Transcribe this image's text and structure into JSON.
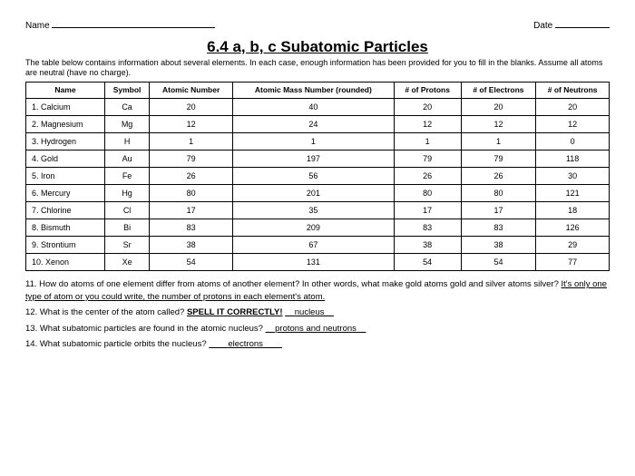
{
  "header": {
    "nameLabel": "Name",
    "dateLabel": "Date"
  },
  "title": "6.4 a, b, c Subatomic Particles",
  "intro": "The table below contains information about several elements. In each case, enough information has been provided for you to fill in the blanks. Assume all atoms are neutral (have no charge).",
  "columns": [
    "Name",
    "Symbol",
    "Atomic Number",
    "Atomic Mass Number (rounded)",
    "# of Protons",
    "# of Electrons",
    "# of Neutrons"
  ],
  "rows": [
    {
      "n": "1.",
      "name": "Calcium",
      "sym": "Ca",
      "an": "20",
      "amn": "40",
      "p": "20",
      "e": "20",
      "nu": "20"
    },
    {
      "n": "2.",
      "name": "Magnesium",
      "sym": "Mg",
      "an": "12",
      "amn": "24",
      "p": "12",
      "e": "12",
      "nu": "12"
    },
    {
      "n": "3.",
      "name": "Hydrogen",
      "sym": "H",
      "an": "1",
      "amn": "1",
      "p": "1",
      "e": "1",
      "nu": "0"
    },
    {
      "n": "4.",
      "name": "Gold",
      "sym": "Au",
      "an": "79",
      "amn": "197",
      "p": "79",
      "e": "79",
      "nu": "118"
    },
    {
      "n": "5.",
      "name": "Iron",
      "sym": "Fe",
      "an": "26",
      "amn": "56",
      "p": "26",
      "e": "26",
      "nu": "30"
    },
    {
      "n": "6.",
      "name": "Mercury",
      "sym": "Hg",
      "an": "80",
      "amn": "201",
      "p": "80",
      "e": "80",
      "nu": "121"
    },
    {
      "n": "7.",
      "name": "Chlorine",
      "sym": "Cl",
      "an": "17",
      "amn": "35",
      "p": "17",
      "e": "17",
      "nu": "18"
    },
    {
      "n": "8.",
      "name": "Bismuth",
      "sym": "Bi",
      "an": "83",
      "amn": "209",
      "p": "83",
      "e": "83",
      "nu": "126"
    },
    {
      "n": "9.",
      "name": "Strontium",
      "sym": "Sr",
      "an": "38",
      "amn": "67",
      "p": "38",
      "e": "38",
      "nu": "29"
    },
    {
      "n": "10.",
      "name": "Xenon",
      "sym": "Xe",
      "an": "54",
      "amn": "131",
      "p": "54",
      "e": "54",
      "nu": "77"
    }
  ],
  "q11a": "11. How do atoms of one element differ from atoms of another element? In other words, what make gold atoms gold and silver atoms silver? ",
  "q11b": "It's only one type of atom or you could write, the number of protons in each element's atom.",
  "q12a": "12. What is the center of the atom called? ",
  "q12b": "SPELL IT CORRECTLY!",
  "q12c": "nucleus",
  "q13a": "13. What subatomic particles are found in the atomic nucleus? ",
  "q13b": "protons and neutrons",
  "q14a": "14. What subatomic particle orbits the nucleus? ",
  "q14b": "electrons"
}
